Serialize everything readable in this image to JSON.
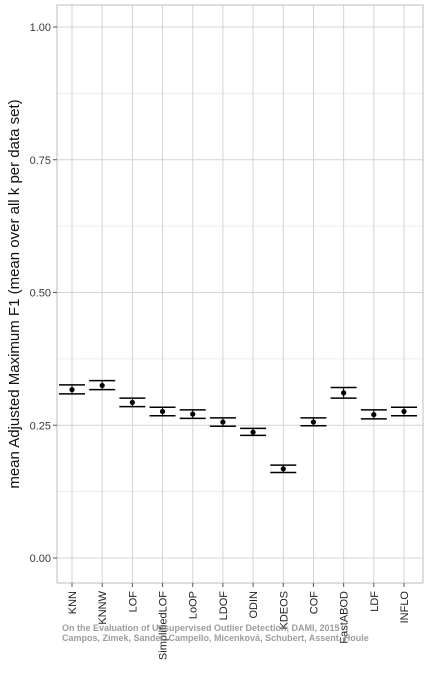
{
  "chart_data": {
    "type": "scatter",
    "ylabel": "mean Adjusted Maximum F1 (mean over all k per data set)",
    "xlabel": "",
    "ylim": [
      0,
      1
    ],
    "yticks": [
      "0.00",
      "0.25",
      "0.50",
      "0.75",
      "1.00"
    ],
    "grid": true,
    "categories": [
      "KNN",
      "KNNW",
      "LOF",
      "SimplifiedLOF",
      "LoOP",
      "LDOF",
      "ODIN",
      "KDEOS",
      "COF",
      "FastABOD",
      "LDF",
      "INFLO"
    ],
    "values": [
      0.317,
      0.325,
      0.293,
      0.276,
      0.271,
      0.256,
      0.237,
      0.168,
      0.256,
      0.311,
      0.27,
      0.276
    ],
    "error_lower": [
      0.309,
      0.317,
      0.285,
      0.268,
      0.263,
      0.248,
      0.231,
      0.161,
      0.249,
      0.301,
      0.262,
      0.268
    ],
    "error_upper": [
      0.326,
      0.334,
      0.301,
      0.284,
      0.279,
      0.264,
      0.244,
      0.175,
      0.264,
      0.321,
      0.279,
      0.284
    ]
  },
  "watermark": {
    "line1": "On the Evaluation of Unsupervised Outlier Detection, DAMI, 2015",
    "line2": "Campos, Zimek, Sander, Campello, Micenková, Schubert, Assent, Houle"
  }
}
